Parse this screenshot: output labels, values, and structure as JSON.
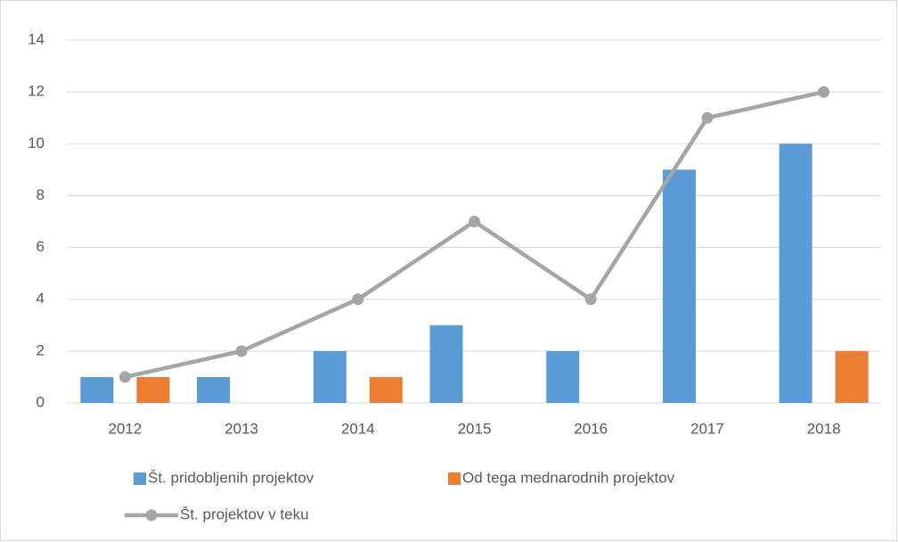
{
  "chart_data": {
    "type": "bar",
    "categories": [
      "2012",
      "2013",
      "2014",
      "2015",
      "2016",
      "2017",
      "2018"
    ],
    "series": [
      {
        "name": "Št. pridobljenih projektov",
        "type": "bar",
        "color": "#5b9bd5",
        "values": [
          1,
          1,
          2,
          3,
          2,
          9,
          10
        ]
      },
      {
        "name": "Od tega mednarodnih projektov",
        "type": "bar",
        "color": "#ed7d31",
        "values": [
          1,
          0,
          1,
          0,
          0,
          0,
          2
        ]
      },
      {
        "name": "Št. projektov v teku",
        "type": "line",
        "color": "#a5a5a5",
        "values": [
          1,
          2,
          4,
          7,
          4,
          11,
          12
        ]
      }
    ],
    "ylim": [
      0,
      14
    ],
    "yticks": [
      0,
      2,
      4,
      6,
      8,
      10,
      12,
      14
    ],
    "grid": true,
    "legend": "bottom"
  }
}
